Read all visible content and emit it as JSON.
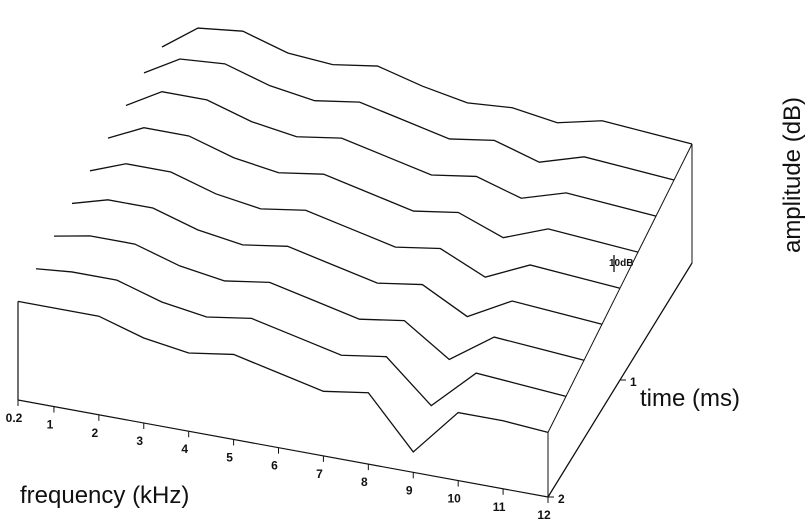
{
  "chart_data": {
    "type": "waterfall",
    "xlabel": "frequency (kHz)",
    "zlabel": "time (ms)",
    "ylabel": "amplitude (dB)",
    "x": [
      0.2,
      1,
      2,
      3,
      4,
      5,
      6,
      7,
      8,
      9,
      10,
      11,
      12
    ],
    "xlim": [
      0.2,
      12
    ],
    "xticks": [
      0.2,
      1,
      2,
      3,
      4,
      5,
      6,
      7,
      8,
      9,
      10,
      11,
      12
    ],
    "z": [
      0,
      0.25,
      0.5,
      0.75,
      1,
      1.25,
      1.5,
      1.75,
      2
    ],
    "zlim": [
      0,
      2
    ],
    "zticks": [
      1,
      2
    ],
    "ylim": [
      0,
      100
    ],
    "scale_bar": {
      "value": 10,
      "label": "10dB"
    },
    "color": "#111111",
    "values": [
      [
        70,
        85,
        88,
        80,
        78,
        82,
        75,
        70,
        72,
        68,
        74,
        72,
        70
      ],
      [
        72,
        84,
        86,
        78,
        74,
        78,
        72,
        66,
        70,
        62,
        70,
        68,
        66
      ],
      [
        70,
        82,
        82,
        74,
        70,
        74,
        68,
        62,
        66,
        58,
        66,
        64,
        62
      ],
      [
        68,
        78,
        78,
        70,
        66,
        70,
        64,
        58,
        62,
        52,
        62,
        60,
        58
      ],
      [
        66,
        74,
        74,
        66,
        62,
        66,
        60,
        54,
        58,
        46,
        58,
        56,
        54
      ],
      [
        64,
        70,
        70,
        62,
        58,
        62,
        56,
        50,
        54,
        40,
        54,
        52,
        50
      ],
      [
        62,
        66,
        66,
        58,
        54,
        58,
        52,
        46,
        50,
        32,
        50,
        48,
        46
      ],
      [
        60,
        62,
        62,
        54,
        50,
        54,
        48,
        42,
        46,
        22,
        46,
        44,
        42
      ],
      [
        58,
        58,
        58,
        50,
        46,
        50,
        44,
        38,
        42,
        12,
        40,
        40,
        38
      ]
    ]
  }
}
